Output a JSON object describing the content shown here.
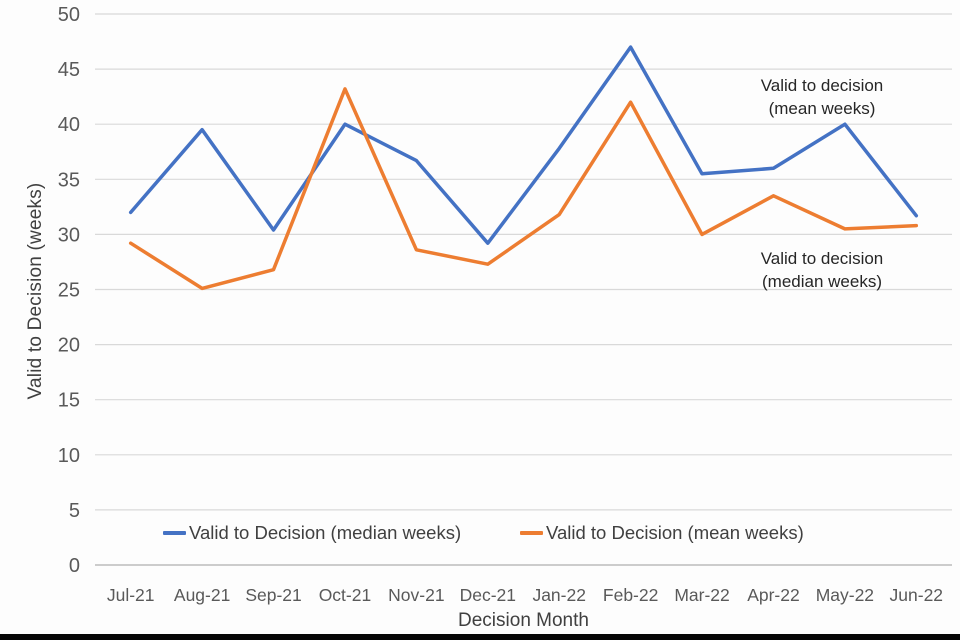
{
  "chart_data": {
    "type": "line",
    "title": "",
    "xlabel": "Decision Month",
    "ylabel": "Valid to Decision (weeks)",
    "ylim": [
      0,
      50
    ],
    "yticks": [
      0,
      5,
      10,
      15,
      20,
      25,
      30,
      35,
      40,
      45,
      50
    ],
    "grid": "horizontal",
    "legend_position": "bottom",
    "categories": [
      "Jul-21",
      "Aug-21",
      "Sep-21",
      "Oct-21",
      "Nov-21",
      "Dec-21",
      "Jan-22",
      "Feb-22",
      "Mar-22",
      "Apr-22",
      "May-22",
      "Jun-22"
    ],
    "series": [
      {
        "name": "Valid to Decision (median weeks)",
        "color": "#4472C4",
        "values": [
          32,
          39.5,
          30.4,
          40,
          36.7,
          29.2,
          37.8,
          47,
          35.5,
          36,
          40,
          31.7
        ]
      },
      {
        "name": "Valid to Decision (mean weeks)",
        "color": "#ED7D31",
        "values": [
          29.2,
          25.1,
          26.8,
          43.2,
          28.6,
          27.3,
          31.8,
          42,
          30,
          33.5,
          30.5,
          30.8
        ]
      }
    ],
    "annotations": [
      {
        "line1": "Valid to decision",
        "line2": "(mean weeks)"
      },
      {
        "line1": "Valid to decision",
        "line2": "(median weeks)"
      }
    ]
  },
  "style": {
    "grid_color": "#d9d9d9",
    "axis_line_color": "#bcbcbc",
    "tick_label_color": "#595959",
    "background": "#fdfdfd",
    "bottom_bar_color": "#060606"
  }
}
